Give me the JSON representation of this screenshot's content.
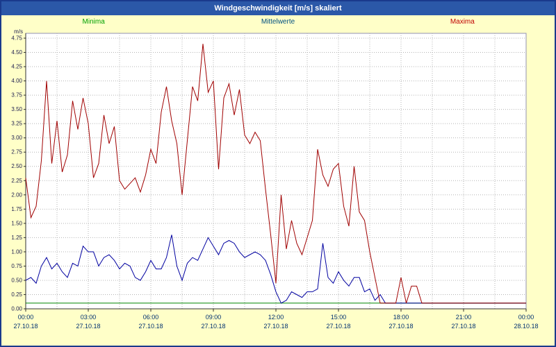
{
  "title_bar": {
    "title": "Windgeschwindigkeit [m/s] skaliert"
  },
  "legend": {
    "items": [
      {
        "label": "Minima",
        "color": "#00a000"
      },
      {
        "label": "Mittelwerte",
        "color": "#005080"
      },
      {
        "label": "Maxima",
        "color": "#c00000"
      }
    ]
  },
  "colors": {
    "frame_background": "#ffffc8",
    "title_bar_bg": "#2b58a8",
    "title_text": "#ffffff",
    "plot_bg": "#ffffff",
    "plot_border": "#9090b0",
    "axis": "#303030",
    "grid": "#b4b4b4",
    "y_tick_text": "#202050",
    "x_tick_text": "#003070"
  },
  "chart_data": {
    "type": "line",
    "title": "Windgeschwindigkeit [m/s] skaliert",
    "ylabel": "m/s",
    "xlabel": "",
    "ylim": [
      0,
      4.75
    ],
    "xlim_hours": [
      0,
      24
    ],
    "grid": true,
    "x_grid_step_hours": 1.5,
    "y_tick_labels": [
      "0.00",
      "0.25",
      "0.50",
      "0.75",
      "1.00",
      "1.25",
      "1.50",
      "1.75",
      "2.00",
      "2.25",
      "2.50",
      "2.75",
      "3.00",
      "3.25",
      "3.50",
      "3.75",
      "4.00",
      "4.25",
      "4.50",
      "4.75"
    ],
    "x_ticks": [
      {
        "hour": 0,
        "time": "00:00",
        "date": "27.10.18"
      },
      {
        "hour": 3,
        "time": "03:00",
        "date": "27.10.18"
      },
      {
        "hour": 6,
        "time": "06:00",
        "date": "27.10.18"
      },
      {
        "hour": 9,
        "time": "09:00",
        "date": "27.10.18"
      },
      {
        "hour": 12,
        "time": "12:00",
        "date": "27.10.18"
      },
      {
        "hour": 15,
        "time": "15:00",
        "date": "27.10.18"
      },
      {
        "hour": 18,
        "time": "18:00",
        "date": "27.10.18"
      },
      {
        "hour": 21,
        "time": "21:00",
        "date": "27.10.18"
      },
      {
        "hour": 24,
        "time": "00:00",
        "date": "28.10.18"
      }
    ],
    "series": [
      {
        "name": "Minima",
        "color": "#008800",
        "x": [
          0,
          24
        ],
        "values": [
          0.1,
          0.1
        ]
      },
      {
        "name": "Mittelwerte",
        "color": "#0000a0",
        "x": [
          0,
          0.25,
          0.5,
          0.75,
          1,
          1.25,
          1.5,
          1.75,
          2,
          2.25,
          2.5,
          2.75,
          3,
          3.25,
          3.5,
          3.75,
          4,
          4.25,
          4.5,
          4.75,
          5,
          5.25,
          5.5,
          5.75,
          6,
          6.25,
          6.5,
          6.75,
          7,
          7.25,
          7.5,
          7.75,
          8,
          8.25,
          8.5,
          8.75,
          9,
          9.25,
          9.5,
          9.75,
          10,
          10.25,
          10.5,
          10.75,
          11,
          11.25,
          11.5,
          11.75,
          12,
          12.25,
          12.5,
          12.75,
          13,
          13.25,
          13.5,
          13.75,
          14,
          14.25,
          14.5,
          14.75,
          15,
          15.25,
          15.5,
          15.75,
          16,
          16.25,
          16.5,
          16.75,
          17,
          17.25,
          17.5,
          24
        ],
        "values": [
          0.5,
          0.55,
          0.45,
          0.75,
          0.9,
          0.7,
          0.8,
          0.65,
          0.55,
          0.8,
          0.75,
          1.1,
          1.0,
          1.0,
          0.75,
          0.9,
          0.95,
          0.85,
          0.7,
          0.8,
          0.75,
          0.55,
          0.5,
          0.65,
          0.85,
          0.7,
          0.7,
          0.9,
          1.3,
          0.75,
          0.5,
          0.8,
          0.9,
          0.85,
          1.05,
          1.25,
          1.1,
          0.95,
          1.15,
          1.2,
          1.15,
          1.0,
          0.9,
          0.95,
          1.0,
          0.95,
          0.85,
          0.6,
          0.3,
          0.1,
          0.15,
          0.3,
          0.25,
          0.2,
          0.3,
          0.3,
          0.35,
          1.15,
          0.55,
          0.45,
          0.65,
          0.5,
          0.4,
          0.55,
          0.55,
          0.3,
          0.35,
          0.15,
          0.25,
          0.1,
          0.1,
          0.1
        ]
      },
      {
        "name": "Maxima",
        "color": "#a00000",
        "x": [
          0,
          0.25,
          0.5,
          0.75,
          1,
          1.25,
          1.5,
          1.75,
          2,
          2.25,
          2.5,
          2.75,
          3,
          3.25,
          3.5,
          3.75,
          4,
          4.25,
          4.5,
          4.75,
          5,
          5.25,
          5.5,
          5.75,
          6,
          6.25,
          6.5,
          6.75,
          7,
          7.25,
          7.5,
          7.75,
          8,
          8.25,
          8.5,
          8.75,
          9,
          9.25,
          9.5,
          9.75,
          10,
          10.25,
          10.5,
          10.75,
          11,
          11.25,
          11.5,
          11.75,
          12,
          12.25,
          12.5,
          12.75,
          13,
          13.25,
          13.5,
          13.75,
          14,
          14.25,
          14.5,
          14.75,
          15,
          15.25,
          15.5,
          15.75,
          16,
          16.25,
          16.5,
          16.75,
          17,
          17.25,
          17.5,
          17.75,
          18,
          18.25,
          18.5,
          18.75,
          19,
          19.25,
          19.5,
          19.75,
          24
        ],
        "values": [
          2.3,
          1.6,
          1.8,
          2.6,
          4.0,
          2.55,
          3.3,
          2.4,
          2.7,
          3.65,
          3.15,
          3.7,
          3.25,
          2.3,
          2.55,
          3.4,
          2.9,
          3.2,
          2.25,
          2.1,
          2.2,
          2.3,
          2.05,
          2.35,
          2.8,
          2.55,
          3.45,
          3.9,
          3.3,
          2.9,
          2.0,
          2.95,
          3.9,
          3.65,
          4.65,
          3.8,
          4.0,
          2.45,
          3.7,
          3.95,
          3.4,
          3.85,
          3.05,
          2.9,
          3.1,
          2.95,
          2.1,
          1.3,
          0.45,
          2.0,
          1.05,
          1.55,
          1.15,
          0.95,
          1.25,
          1.55,
          2.8,
          2.35,
          2.15,
          2.45,
          2.55,
          1.8,
          1.45,
          2.5,
          1.7,
          1.55,
          1.0,
          0.55,
          0.1,
          0.1,
          0.1,
          0.1,
          0.55,
          0.1,
          0.4,
          0.4,
          0.1,
          0.1,
          0.1,
          0.1,
          0.1
        ]
      }
    ]
  }
}
